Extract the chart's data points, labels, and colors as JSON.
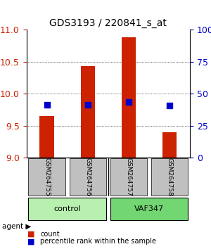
{
  "title": "GDS3193 / 220841_s_at",
  "samples": [
    "GSM264755",
    "GSM264756",
    "GSM264757",
    "GSM264758"
  ],
  "groups": [
    "control",
    "control",
    "VAF347",
    "VAF347"
  ],
  "group_labels": [
    "control",
    "VAF347"
  ],
  "group_colors": [
    "#90EE90",
    "#4CBB47"
  ],
  "bar_values": [
    9.65,
    10.43,
    10.88,
    9.4
  ],
  "percentile_values": [
    9.83,
    9.83,
    9.87,
    9.82
  ],
  "bar_color": "#CC2200",
  "dot_color": "#0000CC",
  "ylim": [
    9.0,
    11.0
  ],
  "yticks": [
    9.0,
    9.5,
    10.0,
    10.5,
    11.0
  ],
  "y2ticks": [
    0,
    25,
    50,
    75,
    100
  ],
  "y2labels": [
    "0",
    "25",
    "50",
    "75",
    "100%"
  ],
  "ylabel_color_left": "#CC2200",
  "ylabel_color_right": "#0000CC",
  "bar_width": 0.35,
  "sample_box_color": "#C0C0C0",
  "group_control_color": "#B8F0B0",
  "group_vaf_color": "#72D672",
  "legend_count_color": "#CC2200",
  "legend_pct_color": "#0000CC"
}
